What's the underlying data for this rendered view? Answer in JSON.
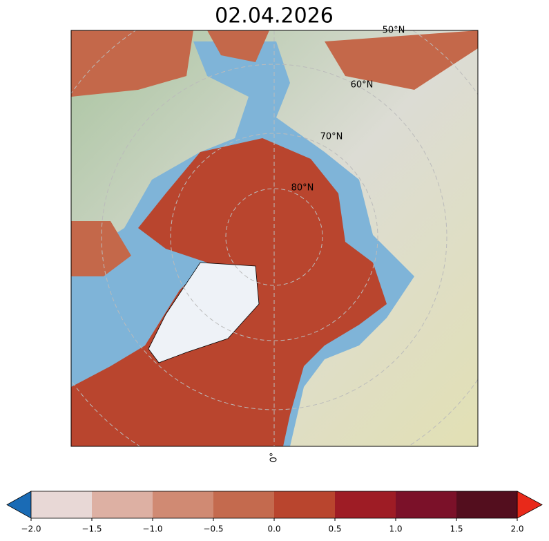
{
  "title": "02.04.2026",
  "map": {
    "lat_labels": [
      "50°N",
      "60°N",
      "70°N",
      "80°N"
    ],
    "lon_labels": [
      "0°"
    ]
  },
  "colorbar": {
    "lim": [
      -2,
      2
    ],
    "ticks": [
      {
        "value": -2,
        "label": "−2.0"
      },
      {
        "value": -1.5,
        "label": "−1.5"
      },
      {
        "value": -1,
        "label": "−1.0"
      },
      {
        "value": -0.5,
        "label": "−0.5"
      },
      {
        "value": 0,
        "label": "0.0"
      },
      {
        "value": 0.5,
        "label": "0.5"
      },
      {
        "value": 1,
        "label": "1.0"
      },
      {
        "value": 1.5,
        "label": "1.5"
      },
      {
        "value": 2,
        "label": "2.0"
      }
    ],
    "colors": [
      "#e8d8d6",
      "#ddb0a3",
      "#d08a73",
      "#c46a4e",
      "#b9452e",
      "#9e1c25",
      "#7b1129",
      "#530e1e"
    ],
    "under_color": "#1a6bb5",
    "over_color": "#e8291a"
  }
}
